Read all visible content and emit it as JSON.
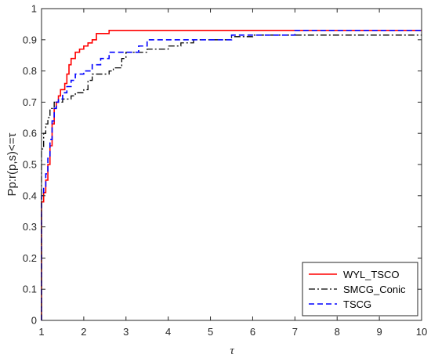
{
  "chart_data": {
    "type": "line",
    "title": "",
    "xlabel": "τ",
    "ylabel": "Pp:r(p,s)<=τ",
    "xlim": [
      1,
      10
    ],
    "ylim": [
      0,
      1
    ],
    "xticks": [
      "1",
      "2",
      "3",
      "4",
      "5",
      "6",
      "7",
      "8",
      "9",
      "10"
    ],
    "yticks": [
      "0",
      "0.1",
      "0.2",
      "0.3",
      "0.4",
      "0.5",
      "0.6",
      "0.7",
      "0.8",
      "0.9",
      "1"
    ],
    "grid": false,
    "legend_position": "bottom-right",
    "step": true,
    "series": [
      {
        "name": "WYL_TSCO",
        "color": "#ff0000",
        "dash": "solid",
        "points": [
          [
            1.0,
            0.0
          ],
          [
            1.0,
            0.38
          ],
          [
            1.05,
            0.41
          ],
          [
            1.1,
            0.45
          ],
          [
            1.15,
            0.5
          ],
          [
            1.2,
            0.56
          ],
          [
            1.25,
            0.63
          ],
          [
            1.3,
            0.68
          ],
          [
            1.35,
            0.7
          ],
          [
            1.4,
            0.72
          ],
          [
            1.45,
            0.74
          ],
          [
            1.55,
            0.76
          ],
          [
            1.6,
            0.79
          ],
          [
            1.65,
            0.82
          ],
          [
            1.7,
            0.84
          ],
          [
            1.8,
            0.86
          ],
          [
            1.9,
            0.87
          ],
          [
            2.0,
            0.88
          ],
          [
            2.1,
            0.89
          ],
          [
            2.2,
            0.9
          ],
          [
            2.3,
            0.92
          ],
          [
            2.6,
            0.93
          ],
          [
            10.0,
            0.93
          ]
        ]
      },
      {
        "name": "SMCG_Conic",
        "color": "#000000",
        "dash": "dashdot",
        "points": [
          [
            1.0,
            0.0
          ],
          [
            1.0,
            0.55
          ],
          [
            1.05,
            0.6
          ],
          [
            1.1,
            0.63
          ],
          [
            1.15,
            0.65
          ],
          [
            1.2,
            0.68
          ],
          [
            1.3,
            0.7
          ],
          [
            1.5,
            0.71
          ],
          [
            1.7,
            0.72
          ],
          [
            1.8,
            0.73
          ],
          [
            2.0,
            0.74
          ],
          [
            2.1,
            0.77
          ],
          [
            2.2,
            0.79
          ],
          [
            2.6,
            0.8
          ],
          [
            2.7,
            0.81
          ],
          [
            2.9,
            0.84
          ],
          [
            3.0,
            0.86
          ],
          [
            3.5,
            0.87
          ],
          [
            4.0,
            0.88
          ],
          [
            4.3,
            0.89
          ],
          [
            4.6,
            0.9
          ],
          [
            5.5,
            0.91
          ],
          [
            6.0,
            0.915
          ],
          [
            10.0,
            0.915
          ]
        ]
      },
      {
        "name": "TSCG",
        "color": "#0000ff",
        "dash": "dashed",
        "points": [
          [
            1.0,
            0.0
          ],
          [
            1.0,
            0.4
          ],
          [
            1.05,
            0.43
          ],
          [
            1.1,
            0.47
          ],
          [
            1.15,
            0.52
          ],
          [
            1.2,
            0.58
          ],
          [
            1.25,
            0.64
          ],
          [
            1.3,
            0.68
          ],
          [
            1.35,
            0.7
          ],
          [
            1.4,
            0.71
          ],
          [
            1.5,
            0.73
          ],
          [
            1.6,
            0.75
          ],
          [
            1.7,
            0.77
          ],
          [
            1.8,
            0.79
          ],
          [
            2.0,
            0.8
          ],
          [
            2.2,
            0.82
          ],
          [
            2.4,
            0.84
          ],
          [
            2.6,
            0.86
          ],
          [
            3.3,
            0.88
          ],
          [
            3.5,
            0.9
          ],
          [
            5.0,
            0.9
          ],
          [
            5.5,
            0.915
          ],
          [
            7.0,
            0.93
          ],
          [
            10.0,
            0.93
          ]
        ]
      }
    ]
  }
}
